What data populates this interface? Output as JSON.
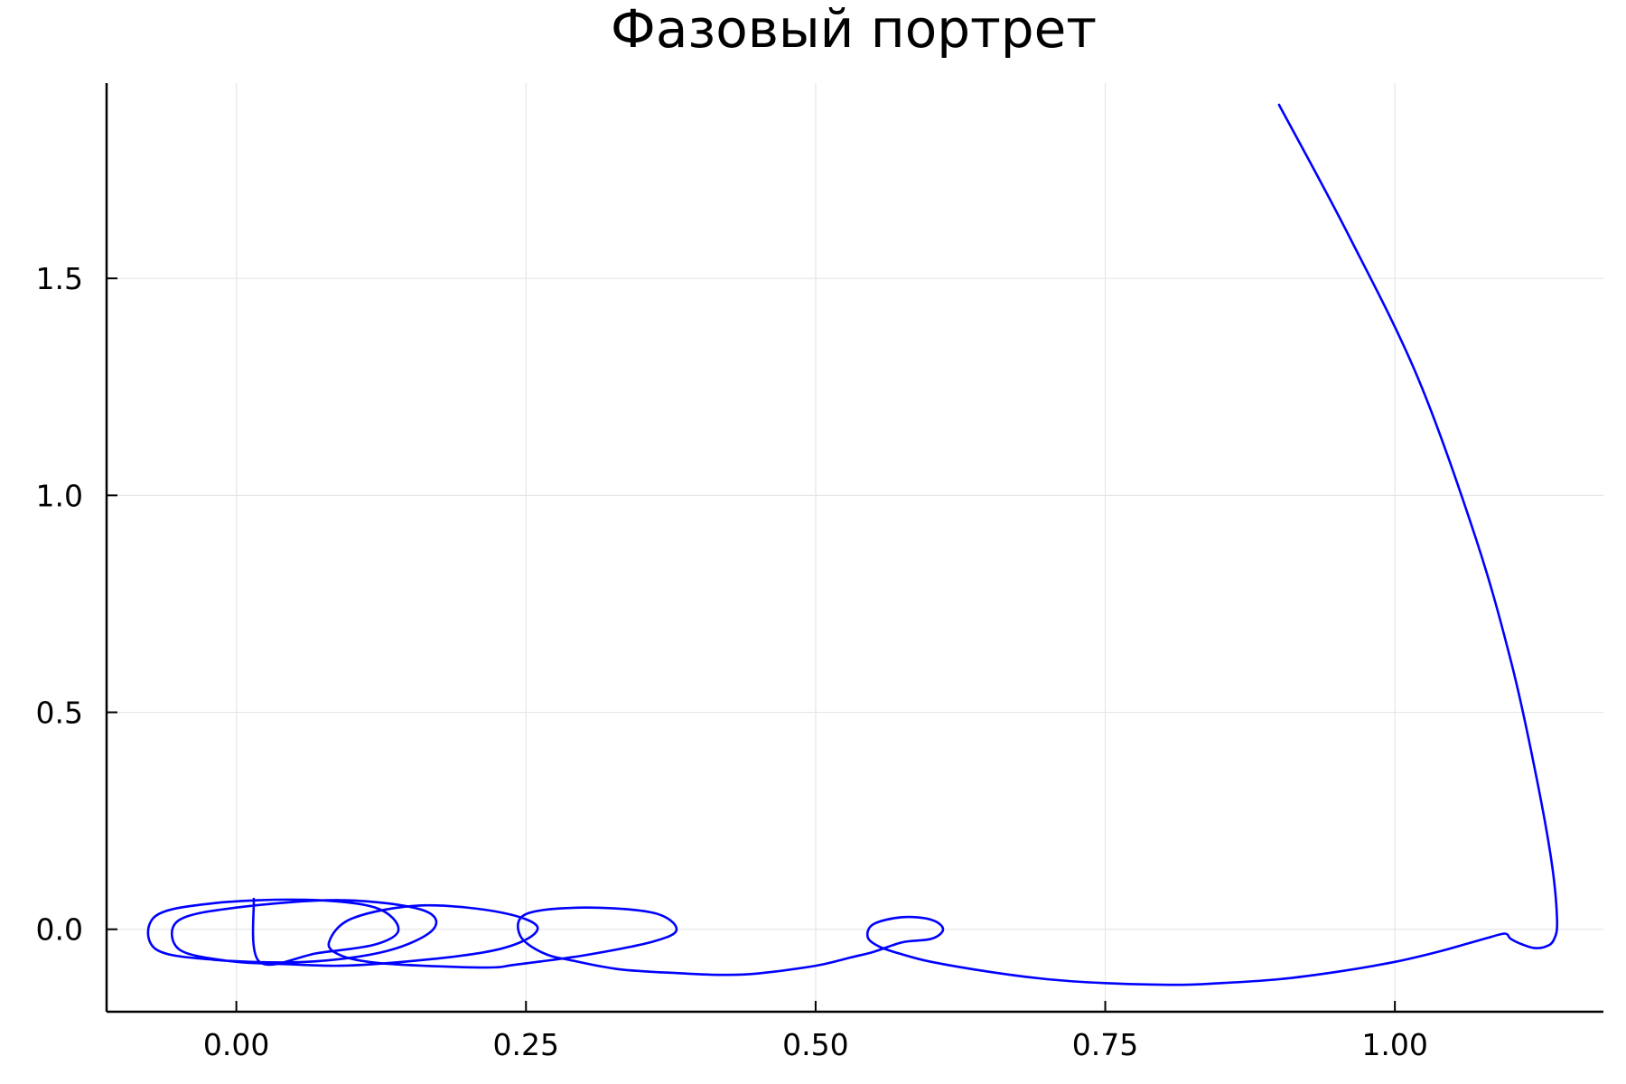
{
  "chart_data": {
    "type": "line",
    "title": "Фазовый портрет",
    "xlabel": "",
    "ylabel": "",
    "xlim": [
      -0.112,
      1.18
    ],
    "ylim": [
      -0.19,
      1.95
    ],
    "x_ticks": [
      0.0,
      0.25,
      0.5,
      0.75,
      1.0
    ],
    "x_tick_labels": [
      "0.00",
      "0.25",
      "0.50",
      "0.75",
      "1.00"
    ],
    "y_ticks": [
      0.0,
      0.5,
      1.0,
      1.5
    ],
    "y_tick_labels": [
      "0.0",
      "0.5",
      "1.0",
      "1.5"
    ],
    "grid": true,
    "legend": "none",
    "series": [
      {
        "color": "#0000ff",
        "x": [
          0.9,
          0.96,
          1.02,
          1.07,
          1.1,
          1.12,
          1.135,
          1.14,
          1.137,
          1.13,
          1.12,
          1.11,
          1.1,
          1.095,
          1.08,
          1.06,
          1.04,
          1.0,
          0.95,
          0.9,
          0.85,
          0.81,
          0.75,
          0.7,
          0.65,
          0.6,
          0.575,
          0.555,
          0.545,
          0.55,
          0.575,
          0.6,
          0.61,
          0.6,
          0.575,
          0.55,
          0.53,
          0.5,
          0.45,
          0.42,
          0.38,
          0.33,
          0.29,
          0.265,
          0.245,
          0.25,
          0.3,
          0.36,
          0.38,
          0.36,
          0.3,
          0.24,
          0.22,
          0.17,
          0.12,
          0.09,
          0.08,
          0.1,
          0.16,
          0.23,
          0.26,
          0.22,
          0.11,
          0.04,
          -0.01,
          -0.05,
          -0.05,
          0.0,
          0.09,
          0.16,
          0.17,
          0.13,
          0.06,
          -0.02,
          -0.07,
          -0.07,
          -0.02,
          0.06,
          0.12,
          0.14,
          0.12,
          0.07,
          0.02,
          0.015
        ],
        "y": [
          1.9,
          1.6,
          1.27,
          0.9,
          0.62,
          0.38,
          0.16,
          0.02,
          -0.025,
          -0.04,
          -0.043,
          -0.035,
          -0.022,
          -0.01,
          -0.02,
          -0.035,
          -0.05,
          -0.075,
          -0.098,
          -0.115,
          -0.124,
          -0.128,
          -0.124,
          -0.115,
          -0.098,
          -0.075,
          -0.058,
          -0.04,
          -0.018,
          0.012,
          0.028,
          0.022,
          0.0,
          -0.022,
          -0.03,
          -0.052,
          -0.065,
          -0.084,
          -0.102,
          -0.105,
          -0.101,
          -0.092,
          -0.072,
          -0.055,
          -0.015,
          0.035,
          0.05,
          0.038,
          0.0,
          -0.028,
          -0.06,
          -0.082,
          -0.088,
          -0.085,
          -0.077,
          -0.06,
          -0.03,
          0.025,
          0.055,
          0.038,
          0.0,
          -0.05,
          -0.082,
          -0.08,
          -0.072,
          -0.045,
          0.02,
          0.05,
          0.067,
          0.045,
          0.0,
          -0.05,
          -0.075,
          -0.07,
          -0.045,
          0.03,
          0.06,
          0.068,
          0.05,
          0.0,
          -0.035,
          -0.055,
          -0.075,
          0.07
        ]
      }
    ]
  }
}
